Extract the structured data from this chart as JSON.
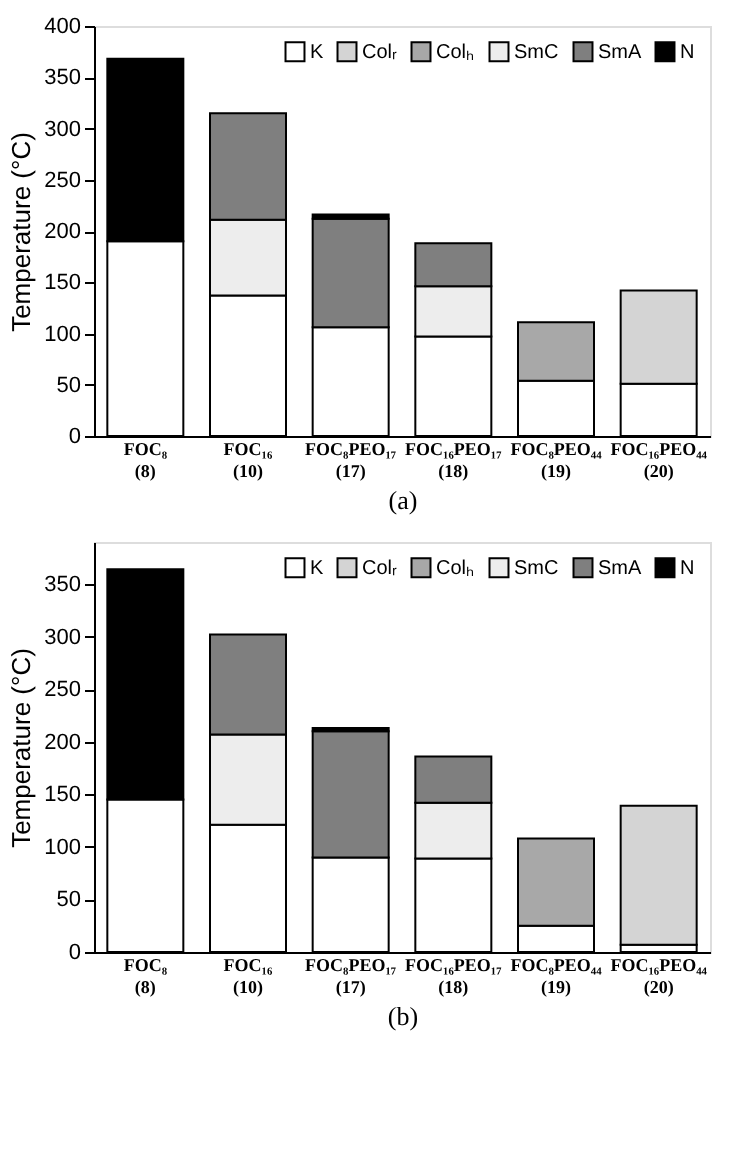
{
  "chart_data": [
    {
      "type": "bar",
      "stacked": true,
      "xlabel": "(a)",
      "ylabel": "Temperature (°C)",
      "legend": "top right",
      "grid": false,
      "categories": [
        "FOC₈\n(8)",
        "FOC₁₆\n(10)",
        "FOC₈PEO₁₇\n(17)",
        "FOC₁₆PEO₁₇\n(18)",
        "FOC₈PEO₄₄\n(19)",
        "FOC₁₆PEO₄₄\n(20)"
      ],
      "ylim": [
        0,
        400
      ],
      "yticks": [
        0,
        50,
        100,
        150,
        200,
        250,
        300,
        350,
        400
      ],
      "series": [
        {
          "name": "K",
          "color": "#ffffff",
          "values": [
            190,
            137,
            106,
            97,
            54,
            51
          ]
        },
        {
          "name": "Colᵣ",
          "color": "#d4d4d4",
          "values": [
            null,
            null,
            null,
            null,
            null,
            91
          ]
        },
        {
          "name": "Colₕ",
          "color": "#a8a8a8",
          "values": [
            null,
            null,
            null,
            null,
            57,
            null
          ]
        },
        {
          "name": "SmC",
          "color": "#ededed",
          "values": [
            null,
            74,
            null,
            49,
            null,
            null
          ]
        },
        {
          "name": "SmA",
          "color": "#7f7f7f",
          "values": [
            null,
            104,
            106,
            42,
            null,
            null
          ]
        },
        {
          "name": "N",
          "color": "#000000",
          "values": [
            178,
            null,
            4,
            null,
            null,
            null
          ]
        }
      ]
    },
    {
      "type": "bar",
      "stacked": true,
      "xlabel": "(b)",
      "ylabel": "Temperature (°C)",
      "legend": "top right",
      "grid": false,
      "categories": [
        "FOC₈\n(8)",
        "FOC₁₆\n(10)",
        "FOC₈PEO₁₇\n(17)",
        "FOC₁₆PEO₁₇\n(18)",
        "FOC₈PEO₄₄\n(19)",
        "FOC₁₆PEO₄₄\n(20)"
      ],
      "ylim": [
        0,
        390
      ],
      "yticks": [
        0,
        50,
        100,
        150,
        200,
        250,
        300,
        350
      ],
      "series": [
        {
          "name": "K",
          "color": "#ffffff",
          "values": [
            145,
            121,
            90,
            89,
            25,
            7
          ]
        },
        {
          "name": "Colᵣ",
          "color": "#d4d4d4",
          "values": [
            null,
            null,
            null,
            null,
            null,
            132
          ]
        },
        {
          "name": "Colₕ",
          "color": "#a8a8a8",
          "values": [
            null,
            null,
            null,
            null,
            83,
            null
          ]
        },
        {
          "name": "SmC",
          "color": "#ededed",
          "values": [
            null,
            86,
            null,
            53,
            null,
            null
          ]
        },
        {
          "name": "SmA",
          "color": "#7f7f7f",
          "values": [
            null,
            95,
            120,
            44,
            null,
            null
          ]
        },
        {
          "name": "N",
          "color": "#000000",
          "values": [
            219,
            null,
            3,
            null,
            null,
            null
          ]
        }
      ]
    }
  ]
}
